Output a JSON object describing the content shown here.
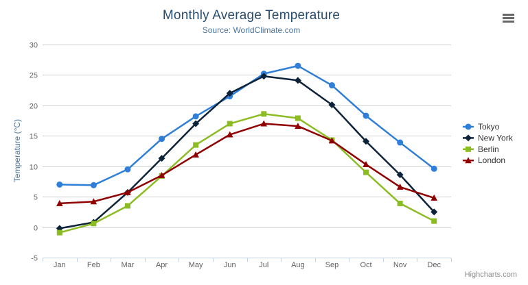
{
  "credits": "Highcharts.com",
  "menu": {
    "icon": "hamburger-menu-icon"
  },
  "chart_data": {
    "type": "line",
    "title": "Monthly Average Temperature",
    "subtitle": "Source: WorldClimate.com",
    "categories": [
      "Jan",
      "Feb",
      "Mar",
      "Apr",
      "May",
      "Jun",
      "Jul",
      "Aug",
      "Sep",
      "Oct",
      "Nov",
      "Dec"
    ],
    "series": [
      {
        "name": "Tokyo",
        "color": "#2f7ed8",
        "marker": "circle",
        "values": [
          7.0,
          6.9,
          9.5,
          14.5,
          18.2,
          21.5,
          25.2,
          26.5,
          23.3,
          18.3,
          13.9,
          9.6
        ]
      },
      {
        "name": "New York",
        "color": "#0d233a",
        "marker": "diamond",
        "values": [
          -0.2,
          0.8,
          5.7,
          11.3,
          17.0,
          22.0,
          24.8,
          24.1,
          20.1,
          14.1,
          8.6,
          2.5
        ]
      },
      {
        "name": "Berlin",
        "color": "#8bbc21",
        "marker": "square",
        "values": [
          -0.9,
          0.6,
          3.5,
          8.4,
          13.5,
          17.0,
          18.6,
          17.9,
          14.3,
          9.0,
          3.9,
          1.0
        ]
      },
      {
        "name": "London",
        "color": "#910000",
        "marker": "triangle",
        "values": [
          3.9,
          4.2,
          5.7,
          8.5,
          11.9,
          15.2,
          17.0,
          16.6,
          14.2,
          10.3,
          6.6,
          4.8
        ]
      }
    ],
    "yAxis": {
      "title": "Temperature (°C)",
      "min": -5,
      "max": 30,
      "tick_interval": 5,
      "tick_labels": [
        "30",
        "25",
        "20",
        "15",
        "10",
        "5",
        "0",
        "-5"
      ]
    },
    "xlabel": "",
    "ylabel": "Temperature (°C)",
    "ylim": [
      -5,
      30
    ],
    "grid": true,
    "legend_position": "right"
  }
}
